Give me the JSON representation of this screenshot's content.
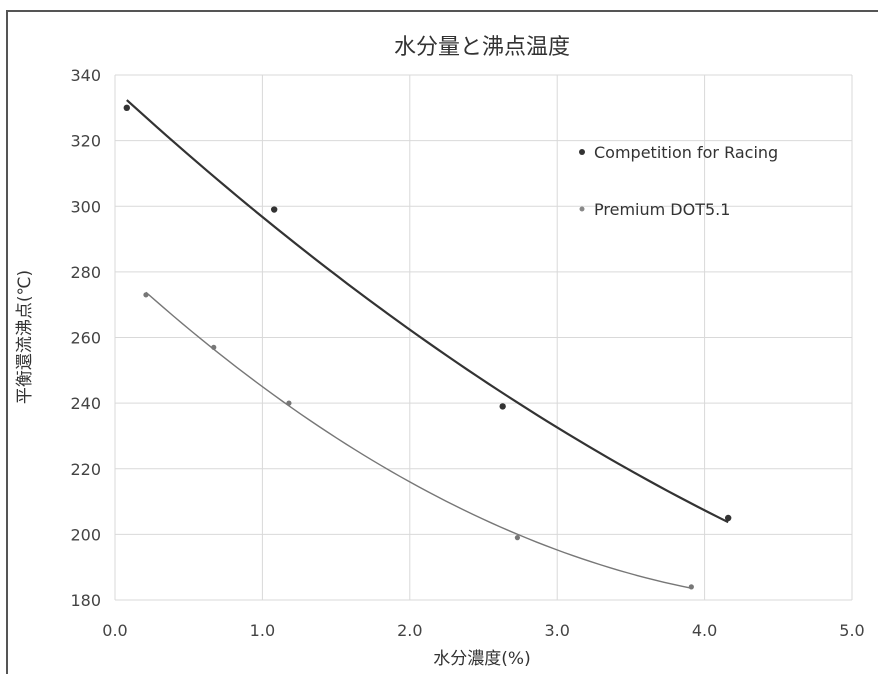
{
  "chart_data": {
    "type": "scatter",
    "title": "水分量と沸点温度",
    "xlabel": "水分濃度(%)",
    "ylabel": "平衡還流沸点(℃)",
    "xlim": [
      0.0,
      5.0
    ],
    "ylim": [
      180,
      340
    ],
    "xticks": [
      "0.0",
      "1.0",
      "2.0",
      "3.0",
      "4.0",
      "5.0"
    ],
    "yticks": [
      "180",
      "200",
      "220",
      "240",
      "260",
      "280",
      "300",
      "320",
      "340"
    ],
    "grid": true,
    "legend_position": "top-right",
    "series": [
      {
        "name": "Competition for Racing",
        "color": "#333333",
        "x": [
          0.08,
          1.08,
          2.63,
          4.16
        ],
        "y": [
          330,
          299,
          239,
          205
        ],
        "trendline": "polynomial"
      },
      {
        "name": "Premium DOT5.1",
        "color": "#777777",
        "x": [
          0.21,
          0.67,
          1.18,
          2.73,
          3.91
        ],
        "y": [
          273,
          257,
          240,
          199,
          184
        ],
        "trendline": "polynomial"
      }
    ]
  }
}
